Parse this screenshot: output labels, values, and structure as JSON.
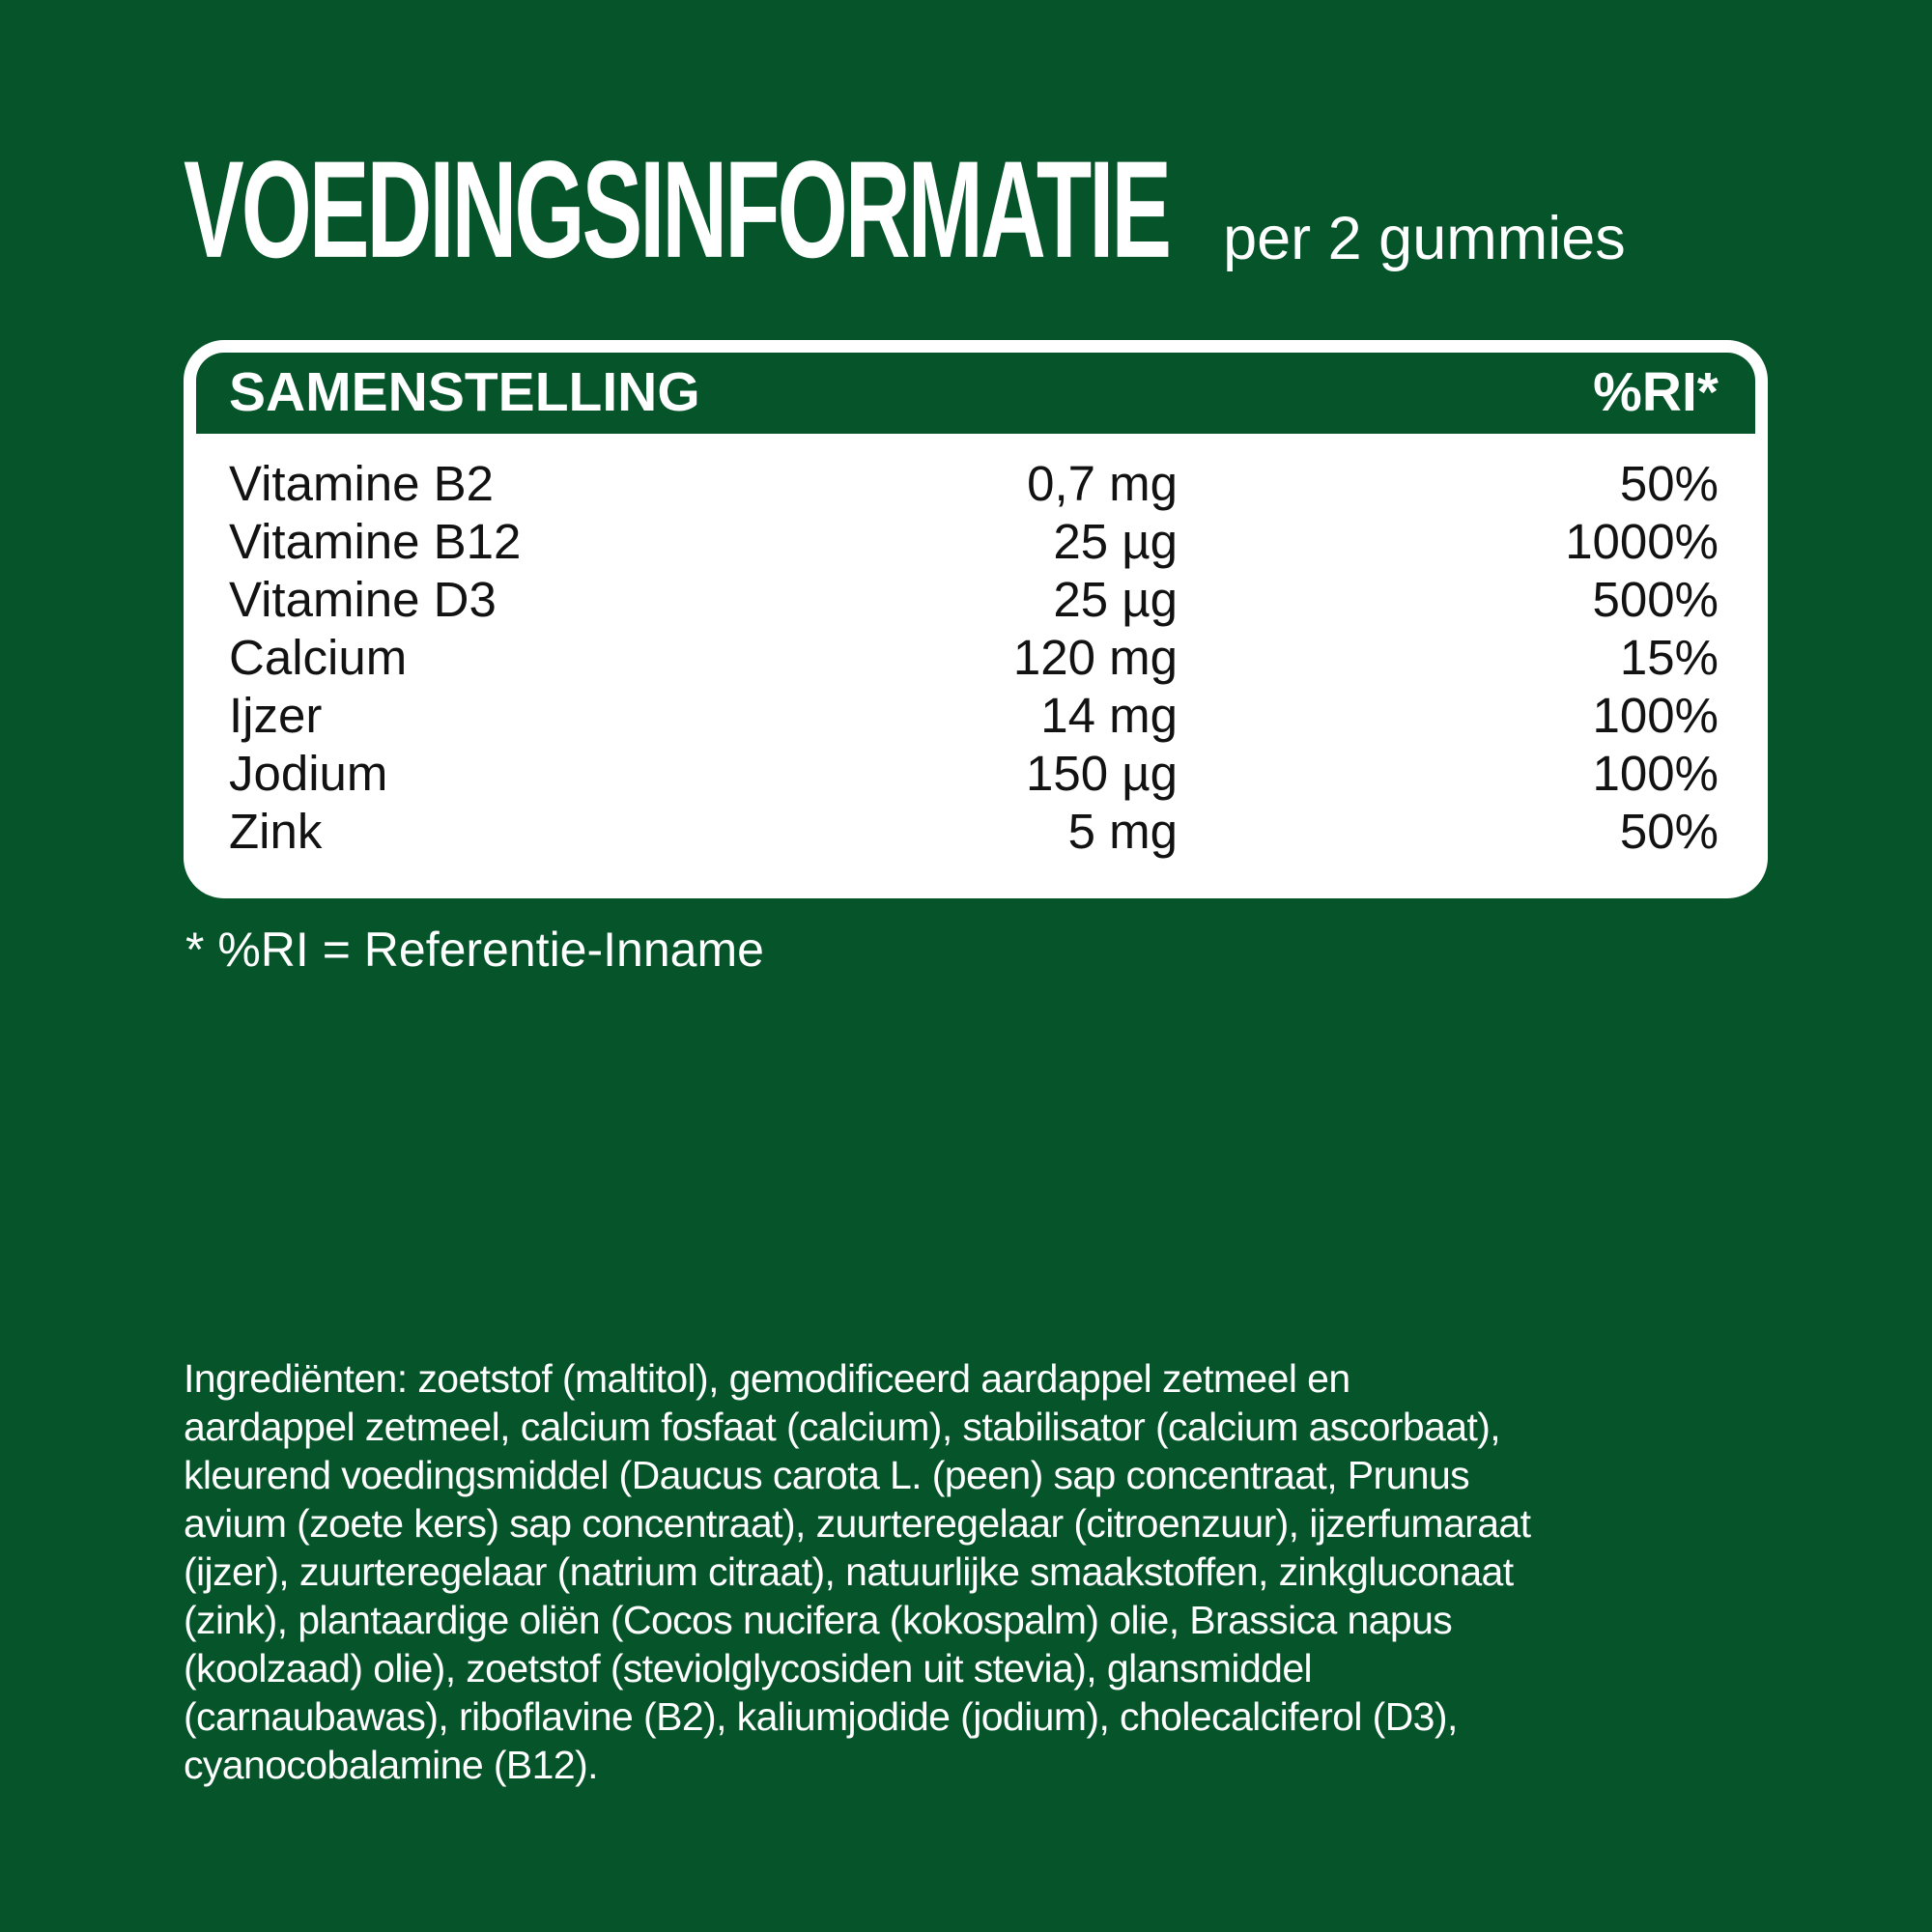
{
  "colors": {
    "background_green": "#05542A",
    "panel_white": "#FFFFFF",
    "body_text_dark": "#121212",
    "text_light": "#FFFFFF"
  },
  "header": {
    "title": "VOEDINGSINFORMATIE",
    "serving": "per 2 gummies"
  },
  "table": {
    "col1_header": "SAMENSTELLING",
    "col2_header": "%RI*",
    "rows": [
      {
        "name": "Vitamine B2",
        "amount": "0,7 mg",
        "ri": "50%"
      },
      {
        "name": "Vitamine B12",
        "amount": "25 µg",
        "ri": "1000%"
      },
      {
        "name": "Vitamine D3",
        "amount": "25 µg",
        "ri": "500%"
      },
      {
        "name": "Calcium",
        "amount": "120 mg",
        "ri": "15%"
      },
      {
        "name": "Ijzer",
        "amount": "14 mg",
        "ri": "100%"
      },
      {
        "name": "Jodium",
        "amount": "150 µg",
        "ri": "100%"
      },
      {
        "name": "Zink",
        "amount": "5 mg",
        "ri": "50%"
      }
    ]
  },
  "footnote": "* %RI = Referentie-Inname",
  "ingredients": "Ingrediënten: zoetstof (maltitol), gemodificeerd aardappel zetmeel en\naardappel zetmeel, calcium fosfaat (calcium), stabilisator (calcium ascorbaat),\nkleurend voedingsmiddel (Daucus carota L. (peen) sap concentraat, Prunus\navium (zoete kers) sap concentraat), zuurteregelaar (citroenzuur), ijzerfumaraat\n(ijzer), zuurteregelaar (natrium citraat), natuurlijke smaakstoffen, zinkgluconaat\n(zink), plantaardige oliën (Cocos nucifera (kokospalm) olie, Brassica napus\n(koolzaad) olie), zoetstof (steviolglycosiden uit stevia), glansmiddel\n(carnaubawas), riboflavine (B2), kaliumjodide (jodium), cholecalciferol (D3),\ncyanocobalamine (B12)."
}
